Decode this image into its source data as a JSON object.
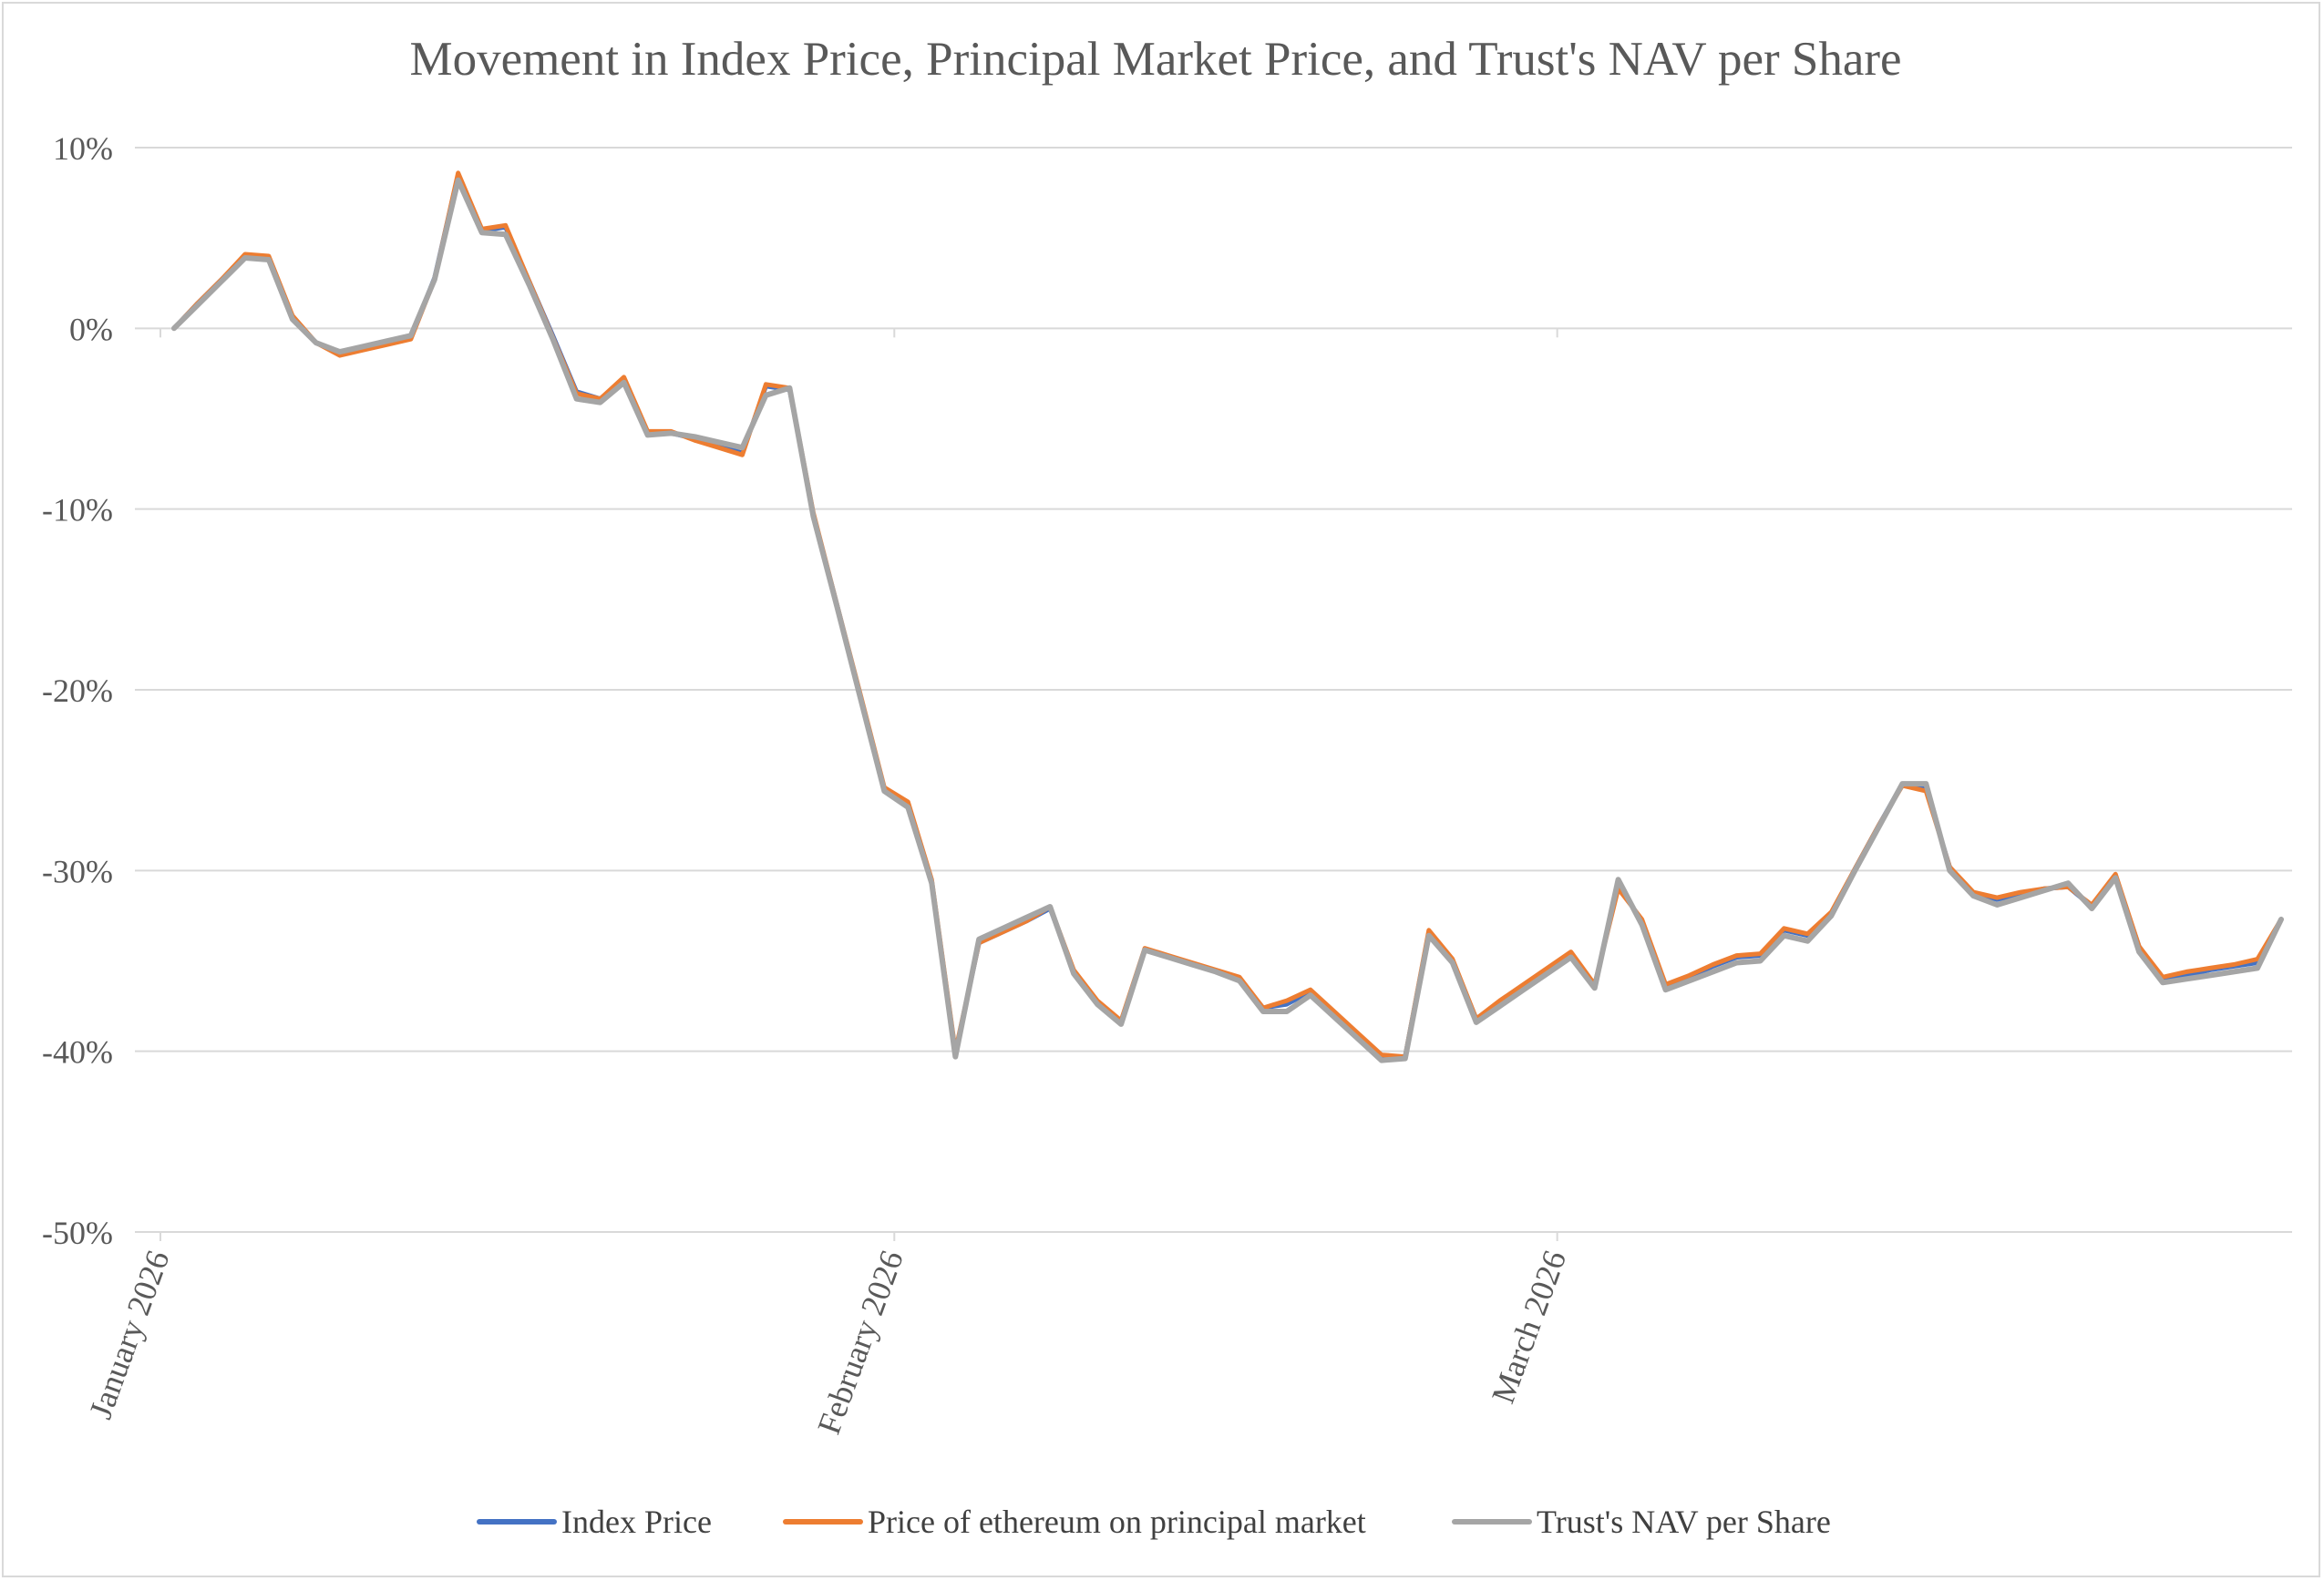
{
  "chart_data": {
    "type": "line",
    "title": "Movement in Index Price, Principal Market Price, and Trust's NAV per Share",
    "xlabel": "",
    "ylabel": "",
    "x_tick_labels": [
      "January 2026",
      "February 2026",
      "March 2026"
    ],
    "x_tick_dates": [
      "2026-01-01",
      "2026-02-01",
      "2026-03-01"
    ],
    "x_range": [
      "2026-01-01",
      "2026-03-31"
    ],
    "ylim": [
      -50,
      10
    ],
    "y_ticks": [
      10,
      0,
      -10,
      -20,
      -30,
      -40,
      -50
    ],
    "y_tick_labels": [
      "10%",
      "0%",
      "-10%",
      "-20%",
      "-30%",
      "-40%",
      "-50%"
    ],
    "grid": true,
    "legend_position": "bottom",
    "x": [
      "2026-01-01",
      "2026-01-02",
      "2026-01-03",
      "2026-01-04",
      "2026-01-05",
      "2026-01-06",
      "2026-01-07",
      "2026-01-08",
      "2026-01-09",
      "2026-01-10",
      "2026-01-11",
      "2026-01-12",
      "2026-01-13",
      "2026-01-14",
      "2026-01-15",
      "2026-01-16",
      "2026-01-17",
      "2026-01-18",
      "2026-01-19",
      "2026-01-20",
      "2026-01-21",
      "2026-01-22",
      "2026-01-23",
      "2026-01-24",
      "2026-01-25",
      "2026-01-26",
      "2026-01-27",
      "2026-01-28",
      "2026-01-29",
      "2026-01-30",
      "2026-01-31",
      "2026-02-01",
      "2026-02-02",
      "2026-02-03",
      "2026-02-04",
      "2026-02-05",
      "2026-02-06",
      "2026-02-07",
      "2026-02-08",
      "2026-02-09",
      "2026-02-10",
      "2026-02-11",
      "2026-02-12",
      "2026-02-13",
      "2026-02-14",
      "2026-02-15",
      "2026-02-16",
      "2026-02-17",
      "2026-02-18",
      "2026-02-19",
      "2026-02-20",
      "2026-02-21",
      "2026-02-22",
      "2026-02-23",
      "2026-02-24",
      "2026-02-25",
      "2026-02-26",
      "2026-02-27",
      "2026-02-28",
      "2026-03-01",
      "2026-03-02",
      "2026-03-03",
      "2026-03-04",
      "2026-03-05",
      "2026-03-06",
      "2026-03-07",
      "2026-03-08",
      "2026-03-09",
      "2026-03-10",
      "2026-03-11",
      "2026-03-12",
      "2026-03-13",
      "2026-03-14",
      "2026-03-15",
      "2026-03-16",
      "2026-03-17",
      "2026-03-18",
      "2026-03-19",
      "2026-03-20",
      "2026-03-21",
      "2026-03-22",
      "2026-03-23",
      "2026-03-24",
      "2026-03-25",
      "2026-03-26",
      "2026-03-27",
      "2026-03-28",
      "2026-03-29",
      "2026-03-30",
      "2026-03-31"
    ],
    "series": [
      {
        "name": "Index Price",
        "color": "#4472c4",
        "values": [
          0.0,
          1.4,
          2.7,
          4.0,
          3.9,
          0.6,
          -0.8,
          -1.4,
          -1.1,
          -0.8,
          -0.5,
          2.8,
          8.5,
          5.4,
          5.6,
          2.6,
          -0.4,
          -3.5,
          -3.9,
          -2.8,
          -5.8,
          -5.8,
          -6.1,
          -6.5,
          -6.9,
          -3.2,
          -3.4,
          -10.3,
          -15.3,
          -20.4,
          -25.5,
          -26.3,
          -30.6,
          -40.1,
          -34.0,
          -33.4,
          -32.8,
          -32.1,
          -35.6,
          -37.3,
          -38.4,
          -34.4,
          -34.8,
          -35.2,
          -35.6,
          -36.0,
          -37.6,
          -37.4,
          -36.7,
          -37.9,
          -39.1,
          -40.3,
          -40.3,
          -33.4,
          -35.0,
          -38.2,
          -37.3,
          -36.4,
          -35.5,
          -34.6,
          -36.4,
          -30.8,
          -32.8,
          -36.4,
          -35.9,
          -35.3,
          -34.8,
          -34.7,
          -33.3,
          -33.6,
          -32.4,
          -29.9,
          -27.5,
          -25.2,
          -25.5,
          -29.8,
          -31.3,
          -31.6,
          -31.3,
          -31.0,
          -30.9,
          -32.0,
          -30.3,
          -34.2,
          -36.0,
          -35.8,
          -35.5,
          -35.3,
          -35.1,
          -32.7
        ]
      },
      {
        "name": "Price of ethereum on principal market",
        "color": "#ed7d31",
        "values": [
          0.0,
          1.4,
          2.7,
          4.1,
          4.0,
          0.7,
          -0.8,
          -1.5,
          -1.2,
          -0.9,
          -0.6,
          2.7,
          8.6,
          5.5,
          5.7,
          2.6,
          -0.5,
          -3.6,
          -3.9,
          -2.7,
          -5.7,
          -5.7,
          -6.2,
          -6.6,
          -7.0,
          -3.1,
          -3.3,
          -10.2,
          -15.3,
          -20.3,
          -25.4,
          -26.2,
          -30.5,
          -40.0,
          -34.0,
          -33.4,
          -32.8,
          -32.0,
          -35.5,
          -37.2,
          -38.3,
          -34.3,
          -34.7,
          -35.1,
          -35.5,
          -35.9,
          -37.6,
          -37.2,
          -36.6,
          -37.8,
          -39.0,
          -40.2,
          -40.3,
          -33.3,
          -34.9,
          -38.2,
          -37.2,
          -36.3,
          -35.4,
          -34.5,
          -36.3,
          -31.0,
          -32.7,
          -36.3,
          -35.8,
          -35.2,
          -34.7,
          -34.6,
          -33.2,
          -33.5,
          -32.3,
          -29.9,
          -27.5,
          -25.3,
          -25.6,
          -29.8,
          -31.2,
          -31.5,
          -31.2,
          -31.0,
          -30.9,
          -31.9,
          -30.2,
          -34.2,
          -35.9,
          -35.6,
          -35.4,
          -35.2,
          -34.9,
          -32.7
        ]
      },
      {
        "name": "Trust's NAV per Share",
        "color": "#a5a5a5",
        "values": [
          0.0,
          1.3,
          2.6,
          3.9,
          3.8,
          0.5,
          -0.8,
          -1.3,
          -1.0,
          -0.7,
          -0.4,
          2.7,
          8.2,
          5.3,
          5.2,
          2.4,
          -0.6,
          -3.9,
          -4.1,
          -3.0,
          -5.9,
          -5.8,
          -6.0,
          -6.3,
          -6.6,
          -3.7,
          -3.3,
          -10.4,
          -15.4,
          -20.5,
          -25.6,
          -26.5,
          -30.7,
          -40.3,
          -33.8,
          -33.2,
          -32.6,
          -32.0,
          -35.7,
          -37.4,
          -38.5,
          -34.4,
          -34.8,
          -35.2,
          -35.6,
          -36.1,
          -37.8,
          -37.8,
          -36.9,
          -38.1,
          -39.3,
          -40.5,
          -40.4,
          -33.6,
          -35.1,
          -38.4,
          -37.5,
          -36.6,
          -35.7,
          -34.8,
          -36.5,
          -30.5,
          -33.0,
          -36.6,
          -36.1,
          -35.6,
          -35.1,
          -35.0,
          -33.6,
          -33.9,
          -32.5,
          -30.0,
          -27.6,
          -25.2,
          -25.2,
          -30.0,
          -31.4,
          -31.9,
          -31.5,
          -31.1,
          -30.7,
          -32.1,
          -30.4,
          -34.5,
          -36.2,
          -36.0,
          -35.8,
          -35.6,
          -35.4,
          -32.7
        ]
      }
    ]
  }
}
